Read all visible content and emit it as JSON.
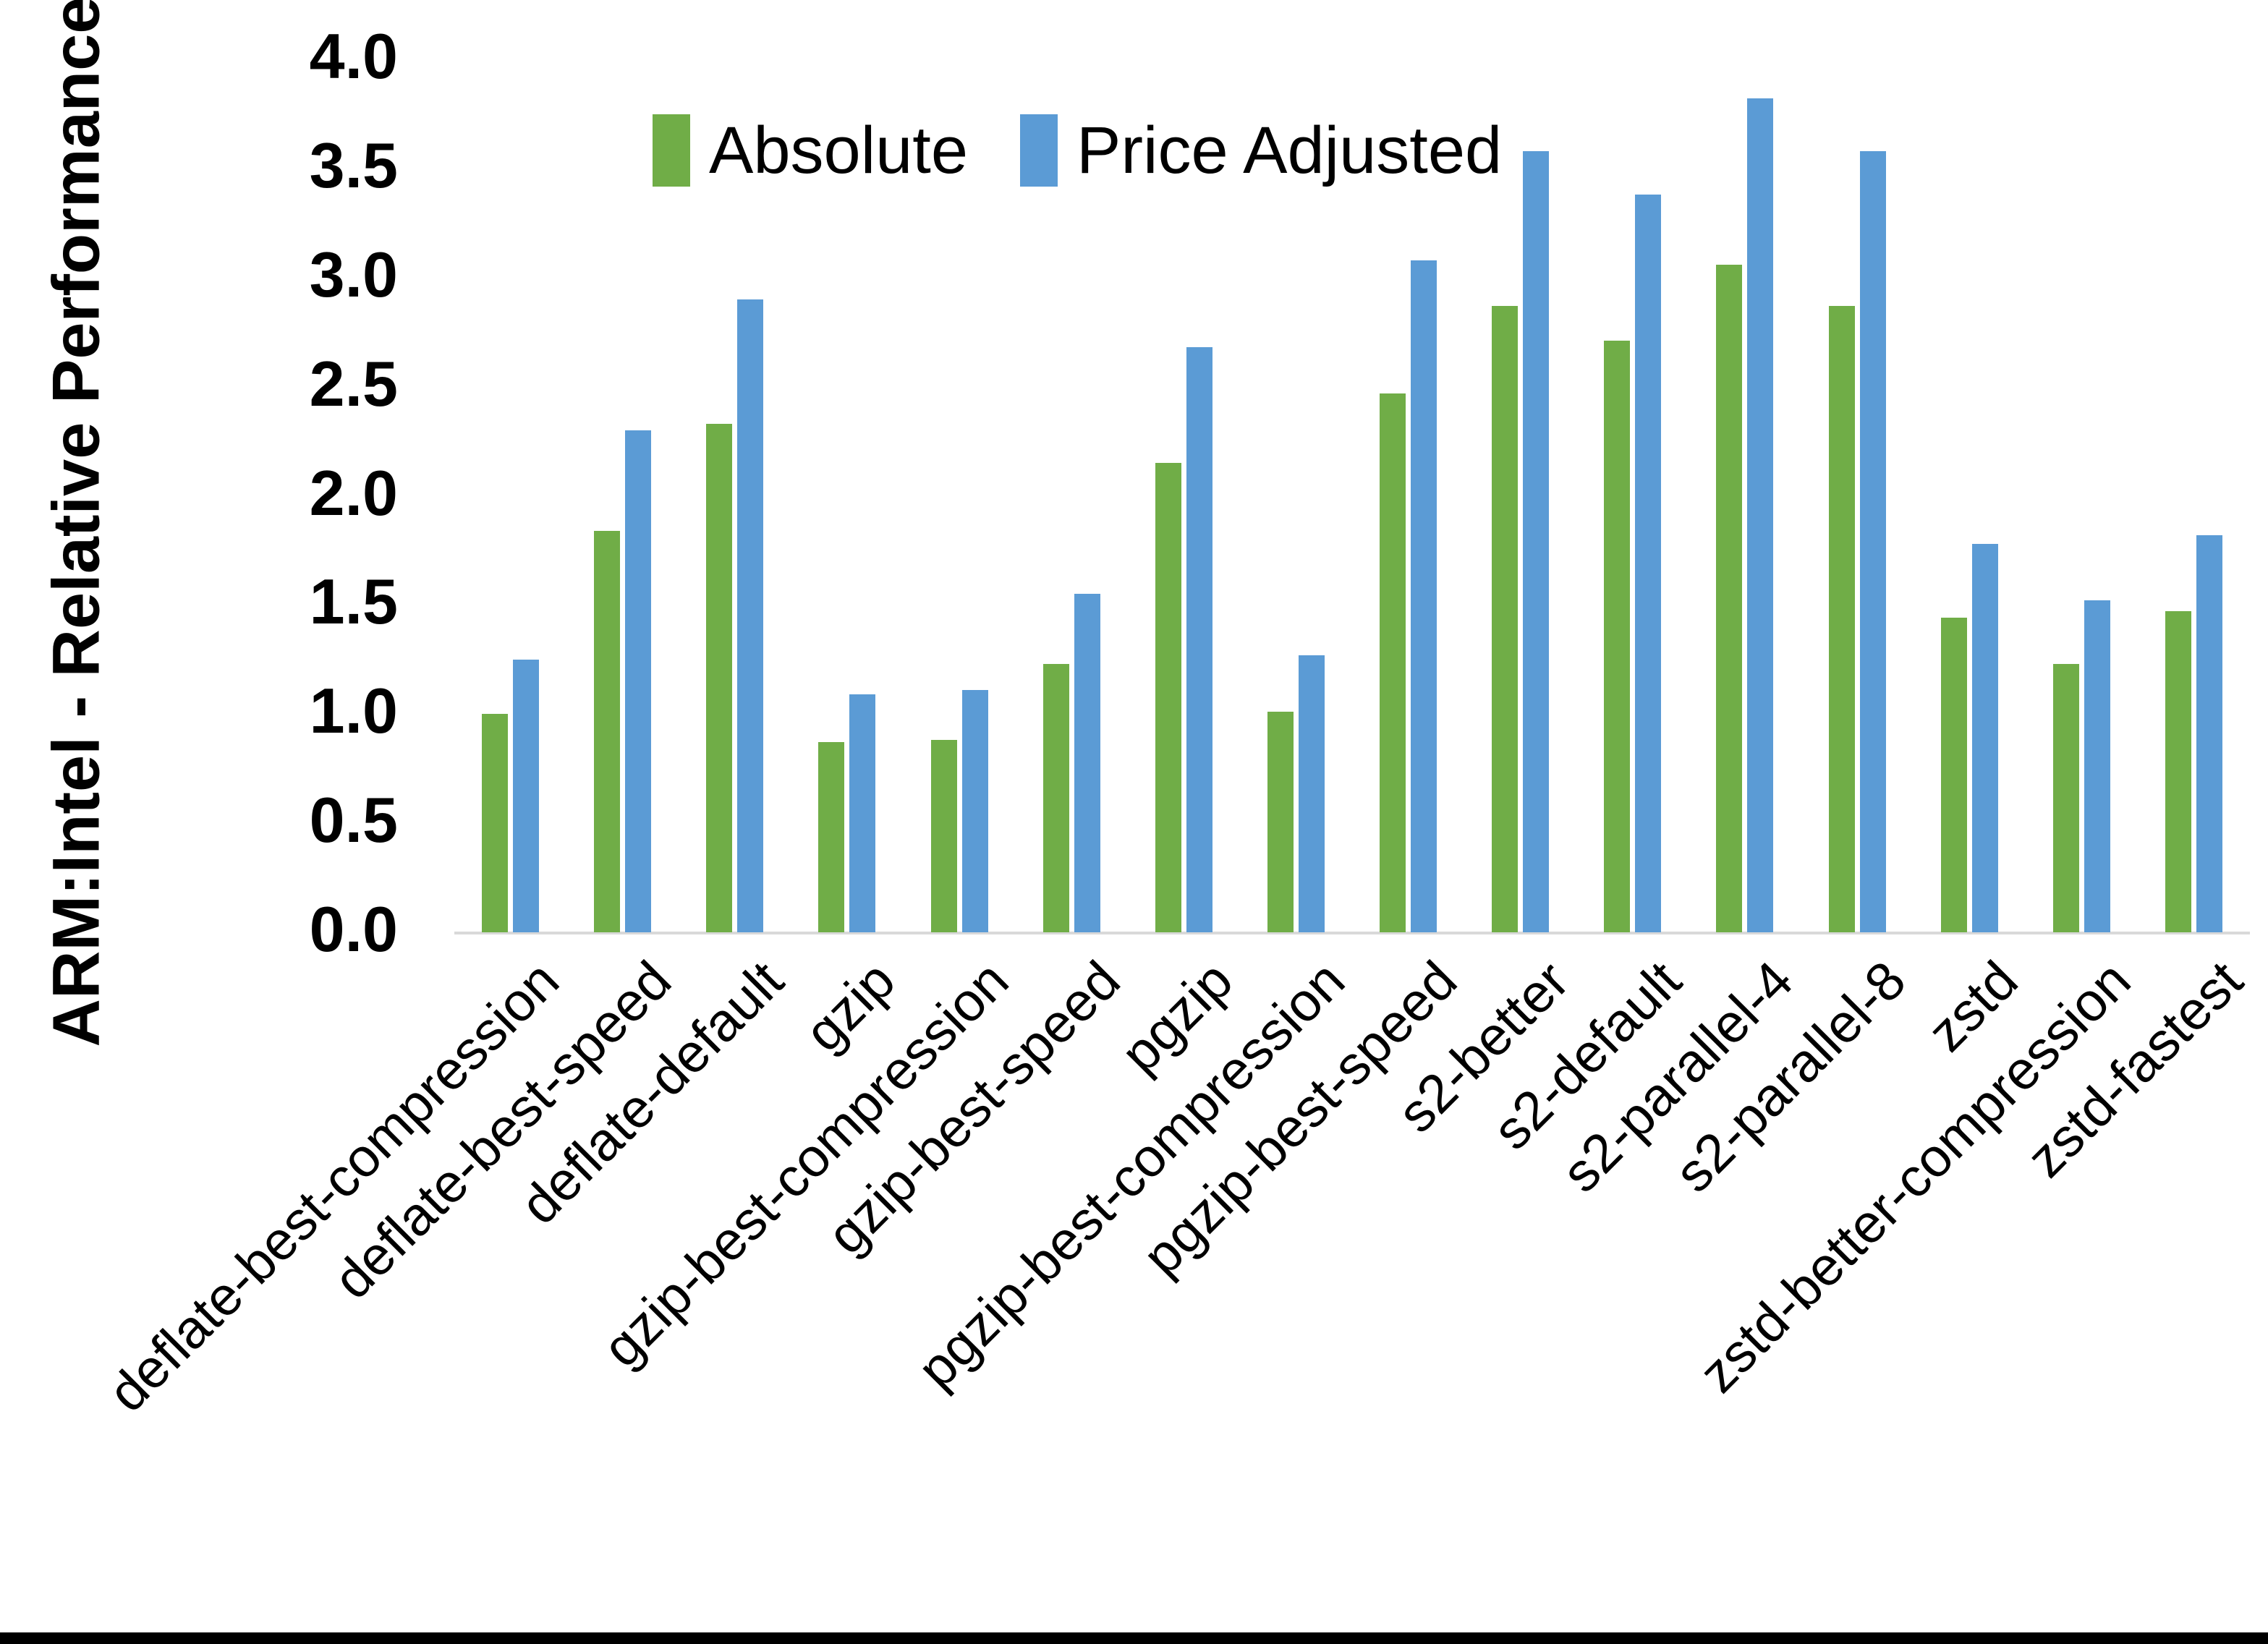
{
  "figure": {
    "y_axis_title": "ARM:Intel - Relative Performance",
    "colors": {
      "absolute": "#70AD47",
      "price_adjusted": "#5B9BD5",
      "axis_line": "#d9d9d9",
      "text": "#000000"
    }
  },
  "chart_data": {
    "type": "bar",
    "title": "",
    "xlabel": "",
    "ylabel": "ARM:Intel - Relative Performance",
    "ylim": [
      0.0,
      4.0
    ],
    "ytick_step": 0.5,
    "ytick_labels": [
      "0.0",
      "0.5",
      "1.0",
      "1.5",
      "2.0",
      "2.5",
      "3.0",
      "3.5",
      "4.0"
    ],
    "grid": false,
    "legend_position": "top-center",
    "categories": [
      "deflate-best-compression",
      "deflate-best-speed",
      "deflate-default",
      "gzip",
      "gzip-best-compression",
      "gzip-best-speed",
      "pgzip",
      "pgzip-best-compression",
      "pgzip-best-speed",
      "s2-better",
      "s2-default",
      "s2-parallel-4",
      "s2-parallel-8",
      "zstd",
      "zstd-better-compression",
      "zstd-fastest"
    ],
    "series": [
      {
        "name": "Absolute",
        "color": "#70AD47",
        "values": [
          1.0,
          1.84,
          2.33,
          0.87,
          0.88,
          1.23,
          2.15,
          1.01,
          2.47,
          2.87,
          2.71,
          3.06,
          2.87,
          1.44,
          1.23,
          1.47
        ]
      },
      {
        "name": "Price Adjusted",
        "color": "#5B9BD5",
        "values": [
          1.25,
          2.3,
          2.9,
          1.09,
          1.11,
          1.55,
          2.68,
          1.27,
          3.08,
          3.58,
          3.38,
          3.82,
          3.58,
          1.78,
          1.52,
          1.82
        ]
      }
    ]
  }
}
